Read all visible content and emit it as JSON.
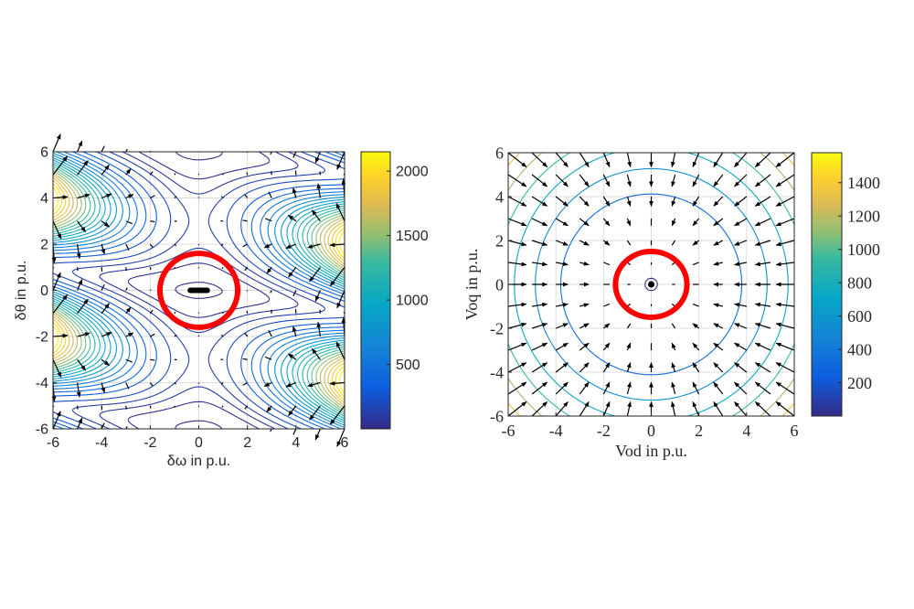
{
  "chart_data": [
    {
      "type": "contour",
      "title": "",
      "xlabel": "δω in p.u.",
      "ylabel": "δθ in p.u.",
      "xlim": [
        -6,
        6
      ],
      "ylim": [
        -6,
        6
      ],
      "xticks": [
        "-6",
        "-4",
        "-2",
        "0",
        "2",
        "4",
        "6"
      ],
      "yticks": [
        "-6",
        "-4",
        "-2",
        "0",
        "2",
        "4",
        "6"
      ],
      "grid": true,
      "overlay": "quiver (negative gradient field)",
      "colormap": "parula",
      "colorbar": {
        "range": [
          0,
          2150
        ],
        "ticks": [
          500,
          1000,
          1500,
          2000
        ],
        "tick_labels": [
          "500",
          "1000",
          "1500",
          "2000"
        ]
      },
      "annotations": [
        {
          "kind": "circle",
          "color": "#ff0000",
          "center": [
            0,
            0
          ],
          "radius": 1.6
        },
        {
          "kind": "equilibrium-set",
          "color": "#000000",
          "from": [
            -0.35,
            0
          ],
          "to": [
            0.35,
            0
          ]
        }
      ]
    },
    {
      "type": "contour",
      "title": "",
      "xlabel": "Vod in p.u.",
      "ylabel": "Voq in p.u.",
      "xlim": [
        -6,
        6
      ],
      "ylim": [
        -6,
        6
      ],
      "xticks": [
        "-6",
        "-4",
        "-2",
        "0",
        "2",
        "4",
        "6"
      ],
      "yticks": [
        "-6",
        "-4",
        "-2",
        "0",
        "2",
        "4",
        "6"
      ],
      "grid": true,
      "overlay": "quiver (negative gradient field)",
      "colormap": "parula",
      "colorbar": {
        "range": [
          0,
          1580
        ],
        "ticks": [
          200,
          400,
          600,
          800,
          1000,
          1200,
          1400
        ],
        "tick_labels": [
          "200",
          "400",
          "600",
          "800",
          "1000",
          "1200",
          "1400"
        ]
      },
      "annotations": [
        {
          "kind": "circle",
          "color": "#ff0000",
          "center": [
            0,
            0
          ],
          "radius": 1.5
        },
        {
          "kind": "equilibrium-point",
          "color": "#000000",
          "at": [
            0,
            0
          ]
        }
      ]
    }
  ]
}
